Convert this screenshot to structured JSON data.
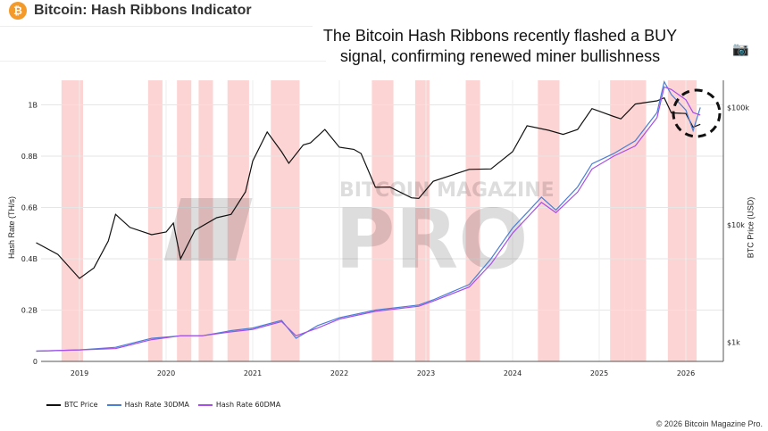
{
  "header": {
    "title": "Bitcoin: Hash Ribbons Indicator",
    "logo": "bitcoin-icon"
  },
  "annotation": {
    "line1": "The Bitcoin Hash Ribbons recently flashed a BUY",
    "line2": "signal, confirming renewed miner bullishness"
  },
  "toolbar": {
    "camera_icon": "camera-icon"
  },
  "watermark": {
    "text_top": "BITCOIN MAGAZINE",
    "text_main": "PRO"
  },
  "copyright": "© 2026 Bitcoin Magazine Pro.",
  "chart_data": {
    "type": "line",
    "ylabel": "Hash Rate (TH/s)",
    "y2label": "BTC Price (USD)",
    "y2scale": "log",
    "xlim": [
      "2018-07",
      "2026-05"
    ],
    "ylim": [
      0,
      1.1
    ],
    "y2lim": [
      600,
      170000
    ],
    "x_ticks": [
      "2019",
      "2020",
      "2021",
      "2022",
      "2023",
      "2024",
      "2025",
      "2026"
    ],
    "y_ticks": [
      {
        "v": 0,
        "label": "0"
      },
      {
        "v": 0.2,
        "label": "0.2B"
      },
      {
        "v": 0.4,
        "label": "0.4B"
      },
      {
        "v": 0.6,
        "label": "0.6B"
      },
      {
        "v": 0.8,
        "label": "0.8B"
      },
      {
        "v": 1.0,
        "label": "1B"
      }
    ],
    "y2_ticks": [
      {
        "v": 1000,
        "label": "$1k"
      },
      {
        "v": 10000,
        "label": "$10k"
      },
      {
        "v": 100000,
        "label": "$100k"
      }
    ],
    "grid": true,
    "legend_position": "bottom-left",
    "colors": {
      "btc": "#111111",
      "hr30": "#4a7fd4",
      "hr60": "#a64ee8",
      "ribbon": "#fcc9c9",
      "circle": "#111111"
    },
    "capitulation_ribbons": [
      [
        "2018-11",
        "2019-01"
      ],
      [
        "2019-11",
        "2019-12"
      ],
      [
        "2020-03",
        "2020-04"
      ],
      [
        "2020-06",
        "2020-07"
      ],
      [
        "2020-10",
        "2020-12"
      ],
      [
        "2021-04",
        "2021-07"
      ],
      [
        "2022-06",
        "2022-08"
      ],
      [
        "2022-12",
        "2023-01"
      ],
      [
        "2023-07",
        "2023-08"
      ],
      [
        "2024-05",
        "2024-07"
      ],
      [
        "2025-03",
        "2025-04"
      ],
      [
        "2025-05",
        "2025-05"
      ],
      [
        "2025-06",
        "2025-07"
      ],
      [
        "2025-11",
        "2026-02"
      ]
    ],
    "annotation_circle_at": "2026-02",
    "series": [
      {
        "name": "BTC Price",
        "axis": "right",
        "points": [
          [
            "2018-07",
            7050
          ],
          [
            "2018-10",
            5600
          ],
          [
            "2019-01",
            3500
          ],
          [
            "2019-03",
            4300
          ],
          [
            "2019-05",
            7300
          ],
          [
            "2019-06",
            12300
          ],
          [
            "2019-08",
            9500
          ],
          [
            "2019-11",
            8250
          ],
          [
            "2020-01",
            8700
          ],
          [
            "2020-02",
            10350
          ],
          [
            "2020-03",
            5140
          ],
          [
            "2020-05",
            9000
          ],
          [
            "2020-08",
            11500
          ],
          [
            "2020-10",
            12300
          ],
          [
            "2020-12",
            19100
          ],
          [
            "2021-01",
            35000
          ],
          [
            "2021-03",
            61900
          ],
          [
            "2021-05",
            42000
          ],
          [
            "2021-06",
            33500
          ],
          [
            "2021-08",
            48000
          ],
          [
            "2021-09",
            50000
          ],
          [
            "2021-11",
            65000
          ],
          [
            "2022-01",
            45900
          ],
          [
            "2022-03",
            44000
          ],
          [
            "2022-04",
            40600
          ],
          [
            "2022-06",
            20900
          ],
          [
            "2022-08",
            21000
          ],
          [
            "2022-11",
            17000
          ],
          [
            "2022-12",
            16800
          ],
          [
            "2023-02",
            23500
          ],
          [
            "2023-05",
            27100
          ],
          [
            "2023-07",
            29700
          ],
          [
            "2023-10",
            30000
          ],
          [
            "2024-01",
            42000
          ],
          [
            "2024-03",
            70000
          ],
          [
            "2024-06",
            64000
          ],
          [
            "2024-08",
            59000
          ],
          [
            "2024-10",
            65000
          ],
          [
            "2024-12",
            98000
          ],
          [
            "2025-03",
            84000
          ],
          [
            "2025-04",
            80000
          ],
          [
            "2025-06",
            107000
          ],
          [
            "2025-09",
            114000
          ],
          [
            "2025-10",
            121000
          ],
          [
            "2025-11",
            90000
          ],
          [
            "2026-01",
            89000
          ],
          [
            "2026-02",
            68000
          ],
          [
            "2026-03",
            72000
          ]
        ]
      },
      {
        "name": "Hash Rate 30DMA",
        "axis": "left",
        "points": [
          [
            "2018-07",
            0.04
          ],
          [
            "2019-01",
            0.045
          ],
          [
            "2019-06",
            0.055
          ],
          [
            "2019-11",
            0.09
          ],
          [
            "2020-03",
            0.1
          ],
          [
            "2020-06",
            0.1
          ],
          [
            "2020-10",
            0.12
          ],
          [
            "2021-01",
            0.13
          ],
          [
            "2021-05",
            0.16
          ],
          [
            "2021-07",
            0.09
          ],
          [
            "2021-10",
            0.14
          ],
          [
            "2022-01",
            0.17
          ],
          [
            "2022-06",
            0.2
          ],
          [
            "2022-12",
            0.22
          ],
          [
            "2023-02",
            0.24
          ],
          [
            "2023-07",
            0.3
          ],
          [
            "2023-10",
            0.4
          ],
          [
            "2024-01",
            0.52
          ],
          [
            "2024-03",
            0.58
          ],
          [
            "2024-05",
            0.64
          ],
          [
            "2024-07",
            0.59
          ],
          [
            "2024-10",
            0.68
          ],
          [
            "2024-12",
            0.77
          ],
          [
            "2025-03",
            0.81
          ],
          [
            "2025-06",
            0.86
          ],
          [
            "2025-09",
            0.97
          ],
          [
            "2025-10",
            1.09
          ],
          [
            "2025-11",
            1.04
          ],
          [
            "2026-01",
            0.98
          ],
          [
            "2026-02",
            0.9
          ],
          [
            "2026-03",
            0.99
          ]
        ]
      },
      {
        "name": "Hash Rate 60DMA",
        "axis": "left",
        "points": [
          [
            "2018-07",
            0.04
          ],
          [
            "2019-01",
            0.045
          ],
          [
            "2019-06",
            0.05
          ],
          [
            "2019-11",
            0.085
          ],
          [
            "2020-03",
            0.1
          ],
          [
            "2020-06",
            0.1
          ],
          [
            "2020-10",
            0.115
          ],
          [
            "2021-01",
            0.125
          ],
          [
            "2021-05",
            0.155
          ],
          [
            "2021-07",
            0.1
          ],
          [
            "2021-10",
            0.13
          ],
          [
            "2022-01",
            0.165
          ],
          [
            "2022-06",
            0.195
          ],
          [
            "2022-12",
            0.215
          ],
          [
            "2023-02",
            0.235
          ],
          [
            "2023-07",
            0.29
          ],
          [
            "2023-10",
            0.38
          ],
          [
            "2024-01",
            0.5
          ],
          [
            "2024-03",
            0.56
          ],
          [
            "2024-05",
            0.62
          ],
          [
            "2024-07",
            0.58
          ],
          [
            "2024-10",
            0.66
          ],
          [
            "2024-12",
            0.75
          ],
          [
            "2025-03",
            0.8
          ],
          [
            "2025-06",
            0.84
          ],
          [
            "2025-09",
            0.95
          ],
          [
            "2025-10",
            1.07
          ],
          [
            "2025-11",
            1.06
          ],
          [
            "2026-01",
            1.02
          ],
          [
            "2026-02",
            0.97
          ],
          [
            "2026-03",
            0.96
          ]
        ]
      }
    ]
  }
}
